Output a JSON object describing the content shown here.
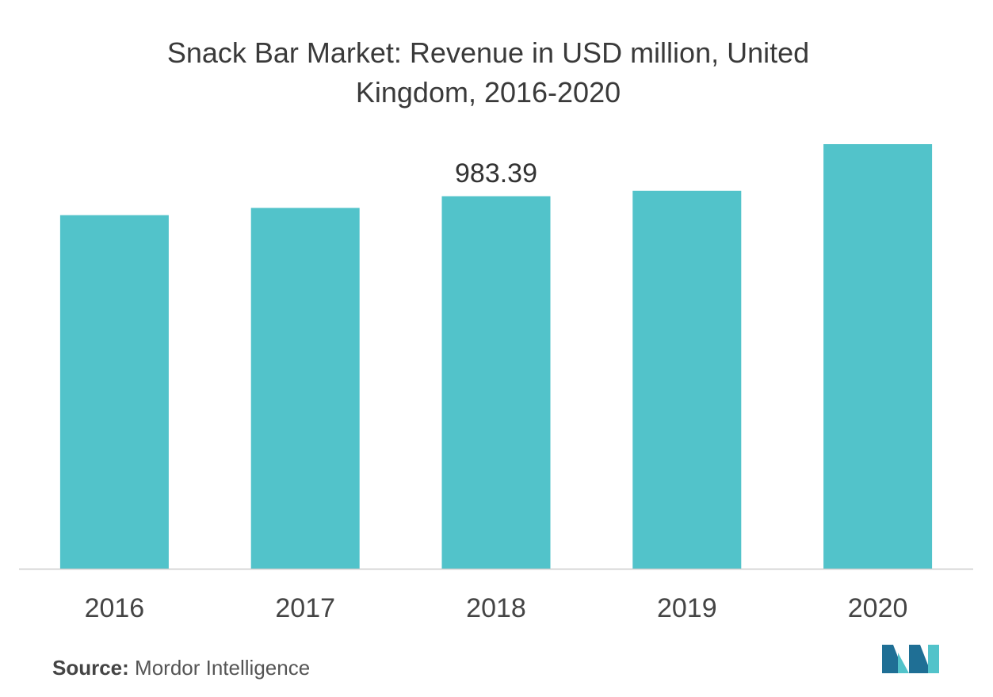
{
  "title_line1": "Snack Bar Market: Revenue in USD million, United",
  "title_line2": "Kingdom, 2016-2020",
  "source_label": "Source:",
  "source_text": "Mordor Intelligence",
  "logo_icon": "mordor-intelligence-logo-icon",
  "colors": {
    "bar": "#52C3CA",
    "axis": "#cccccc",
    "tick_text": "#444444",
    "logo_dark": "#1f6f95",
    "logo_light": "#52C3CA"
  },
  "chart_data": {
    "type": "bar",
    "title": "Snack Bar Market: Revenue in USD million, United Kingdom, 2016-2020",
    "categories": [
      "2016",
      "2017",
      "2018",
      "2019",
      "2020"
    ],
    "values": [
      933.5,
      952.6,
      983.39,
      998.0,
      1121.0
    ],
    "data_labels": [
      null,
      null,
      "983.39",
      null,
      null
    ],
    "xlabel": "",
    "ylabel": "",
    "ylim": [
      0,
      1121
    ],
    "grid": false,
    "legend": "none"
  }
}
